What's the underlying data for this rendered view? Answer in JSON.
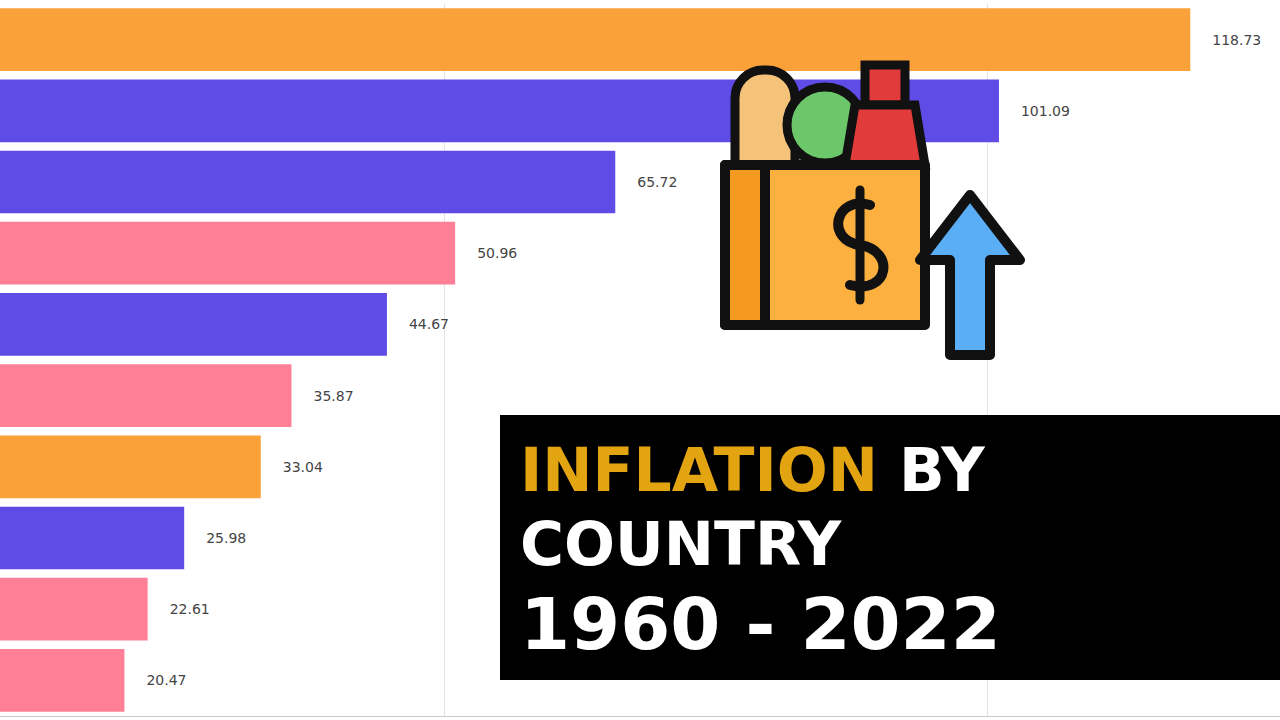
{
  "chart_data": {
    "type": "bar",
    "orientation": "horizontal",
    "title": "INFLATION BY COUNTRY",
    "subtitle": "1960 - 2022",
    "categories": [
      null,
      null,
      null,
      null,
      null,
      null,
      null,
      null,
      null,
      null
    ],
    "values": [
      118.73,
      101.09,
      65.72,
      50.96,
      44.67,
      35.87,
      33.04,
      25.98,
      22.61,
      20.47
    ],
    "colors": [
      "#fba13a",
      "#5f4be6",
      "#5f4be6",
      "#ff7f96",
      "#5f4be6",
      "#ff7f96",
      "#fba13a",
      "#5f4be6",
      "#ff7f96",
      "#ff7f96"
    ],
    "xlim": [
      9,
      127
    ],
    "xticks": [
      50,
      100
    ],
    "grid": true,
    "data_labels": true,
    "tick_labels": false
  }
}
